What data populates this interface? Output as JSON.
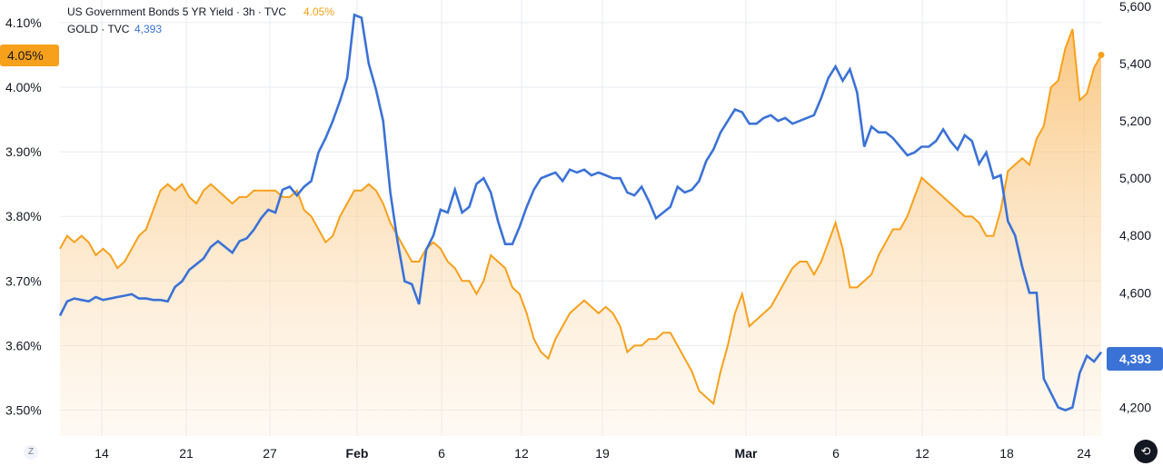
{
  "legend": {
    "bond_name": "US Government Bonds 5 YR Yield · 3h · TVC",
    "bond_value": "4.05%",
    "gold_name": "GOLD · TVC",
    "gold_value": "4,393"
  },
  "badges": {
    "left_tick": "4.10%",
    "left_current": "4.05%",
    "right_current": "4,393"
  },
  "colors": {
    "bond": "#f7a01b",
    "bond_fill_top": "#f9bd6b",
    "gold": "#3b72d6",
    "grid": "#e9ebf0"
  },
  "controls": {
    "logo": "Z",
    "reset_icon": "reset-chart-icon",
    "reset_glyph": "⟲"
  },
  "chart_data": {
    "type": "line",
    "x_axis": {
      "labels": [
        "14",
        "21",
        "27",
        "Feb",
        "6",
        "12",
        "19",
        "Mar",
        "6",
        "12",
        "18",
        "24"
      ],
      "bold": [
        "Feb",
        "Mar"
      ]
    },
    "left_axis": {
      "unit": "%",
      "ticks": [
        "4.10%",
        "4.00%",
        "3.90%",
        "3.80%",
        "3.70%",
        "3.60%",
        "3.50%"
      ],
      "range": [
        3.46,
        4.135
      ]
    },
    "right_axis": {
      "ticks": [
        "5,600",
        "5,400",
        "5,200",
        "5,000",
        "4,800",
        "4,600",
        "4,200"
      ],
      "range": [
        4100,
        5622
      ]
    },
    "grid": true,
    "series": [
      {
        "name": "US Government Bonds 5 YR Yield · 3h · TVC",
        "axis": "left",
        "style": "area",
        "values": [
          3.75,
          3.77,
          3.76,
          3.77,
          3.76,
          3.74,
          3.75,
          3.74,
          3.72,
          3.73,
          3.75,
          3.77,
          3.78,
          3.81,
          3.84,
          3.85,
          3.84,
          3.85,
          3.83,
          3.82,
          3.84,
          3.85,
          3.84,
          3.83,
          3.82,
          3.83,
          3.83,
          3.84,
          3.84,
          3.84,
          3.84,
          3.83,
          3.83,
          3.84,
          3.81,
          3.8,
          3.78,
          3.76,
          3.77,
          3.8,
          3.82,
          3.84,
          3.84,
          3.85,
          3.84,
          3.82,
          3.79,
          3.77,
          3.75,
          3.73,
          3.73,
          3.75,
          3.76,
          3.75,
          3.73,
          3.72,
          3.7,
          3.7,
          3.68,
          3.7,
          3.74,
          3.73,
          3.72,
          3.69,
          3.68,
          3.65,
          3.61,
          3.59,
          3.58,
          3.61,
          3.63,
          3.65,
          3.66,
          3.67,
          3.66,
          3.65,
          3.66,
          3.65,
          3.63,
          3.59,
          3.6,
          3.6,
          3.61,
          3.61,
          3.62,
          3.62,
          3.6,
          3.58,
          3.56,
          3.53,
          3.52,
          3.51,
          3.56,
          3.6,
          3.65,
          3.68,
          3.63,
          3.64,
          3.65,
          3.66,
          3.68,
          3.7,
          3.72,
          3.73,
          3.73,
          3.71,
          3.73,
          3.76,
          3.79,
          3.75,
          3.69,
          3.69,
          3.7,
          3.71,
          3.74,
          3.76,
          3.78,
          3.78,
          3.8,
          3.83,
          3.86,
          3.85,
          3.84,
          3.83,
          3.82,
          3.81,
          3.8,
          3.8,
          3.79,
          3.77,
          3.77,
          3.81,
          3.87,
          3.88,
          3.89,
          3.88,
          3.92,
          3.94,
          4.0,
          4.01,
          4.06,
          4.09,
          3.98,
          3.99,
          4.03,
          4.05
        ]
      },
      {
        "name": "GOLD · TVC",
        "axis": "right",
        "style": "line",
        "values": [
          4520,
          4570,
          4580,
          4575,
          4570,
          4585,
          4575,
          4580,
          4585,
          4590,
          4595,
          4580,
          4580,
          4575,
          4575,
          4570,
          4620,
          4640,
          4680,
          4700,
          4720,
          4760,
          4780,
          4760,
          4740,
          4780,
          4790,
          4820,
          4860,
          4890,
          4880,
          4960,
          4970,
          4940,
          4970,
          4990,
          5090,
          5140,
          5200,
          5270,
          5350,
          5570,
          5560,
          5400,
          5310,
          5200,
          4950,
          4780,
          4640,
          4630,
          4560,
          4750,
          4800,
          4890,
          4880,
          4960,
          4880,
          4900,
          4980,
          5000,
          4950,
          4850,
          4770,
          4770,
          4830,
          4900,
          4960,
          5000,
          5010,
          5020,
          4990,
          5030,
          5020,
          5030,
          5010,
          5020,
          5010,
          5000,
          5000,
          4950,
          4940,
          4970,
          4920,
          4860,
          4880,
          4900,
          4970,
          4950,
          4960,
          4990,
          5060,
          5100,
          5160,
          5200,
          5240,
          5230,
          5190,
          5190,
          5210,
          5220,
          5200,
          5210,
          5190,
          5200,
          5210,
          5220,
          5280,
          5350,
          5390,
          5340,
          5380,
          5300,
          5110,
          5180,
          5160,
          5160,
          5140,
          5110,
          5080,
          5090,
          5110,
          5110,
          5130,
          5170,
          5130,
          5100,
          5150,
          5130,
          5050,
          5090,
          5000,
          5010,
          4850,
          4800,
          4690,
          4600,
          4600,
          4300,
          4250,
          4200,
          4190,
          4200,
          4320,
          4380,
          4360,
          4393
        ]
      }
    ]
  }
}
